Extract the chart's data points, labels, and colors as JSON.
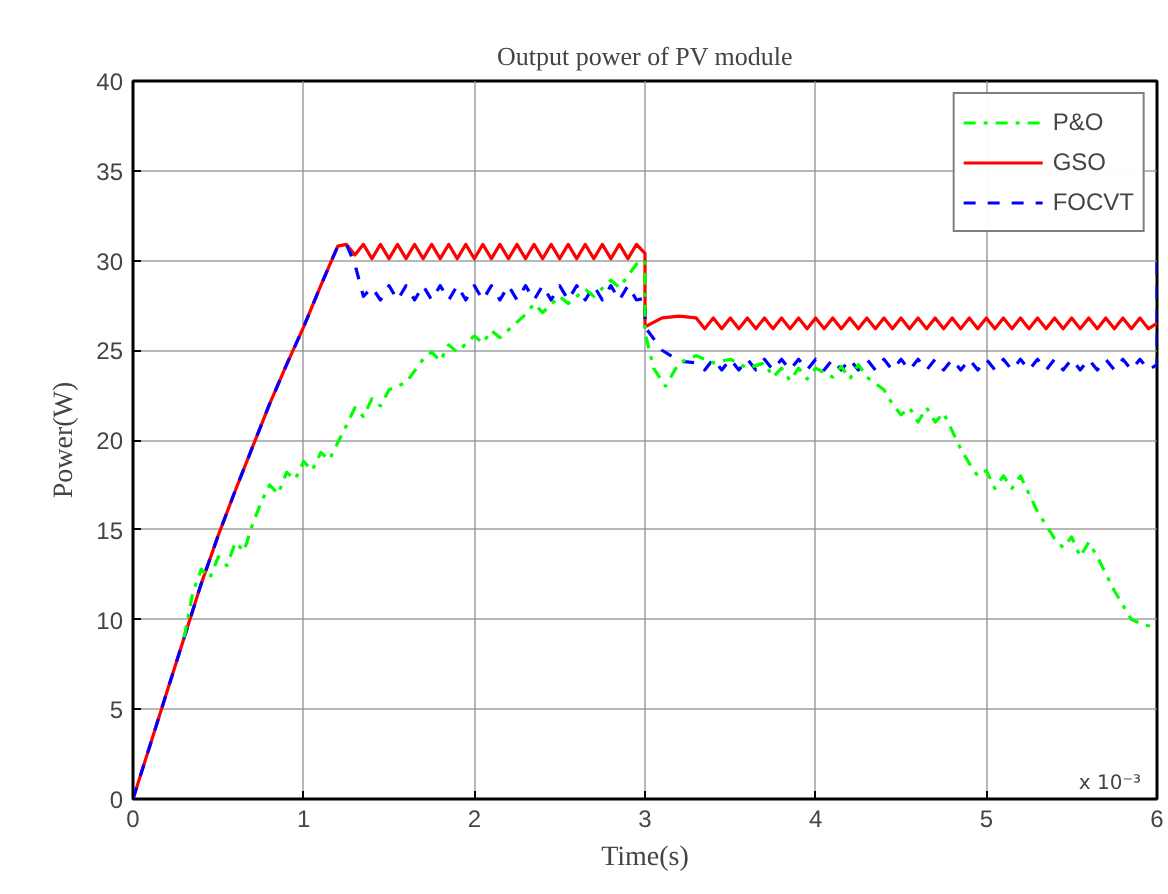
{
  "chart_data": {
    "type": "line",
    "title": "Output power of PV module",
    "xlabel": "Time(s)",
    "ylabel": "Power(W)",
    "xlim": [
      0,
      6
    ],
    "ylim": [
      0,
      40
    ],
    "xticks": [
      0,
      1,
      2,
      3,
      4,
      5,
      6
    ],
    "yticks": [
      0,
      5,
      10,
      15,
      20,
      25,
      30,
      35,
      40
    ],
    "grid": true,
    "legend": "top right",
    "marker": "none",
    "annotations": [
      "x 10⁻³"
    ],
    "series": [
      {
        "name": "P&O",
        "color": "#00ff00",
        "line_style": "dashdot",
        "x": [
          0.3,
          0.35,
          0.4,
          0.45,
          0.5,
          0.55,
          0.6,
          0.65,
          0.7,
          0.75,
          0.8,
          0.85,
          0.9,
          0.95,
          1.0,
          1.05,
          1.1,
          1.15,
          1.25,
          1.3,
          1.35,
          1.4,
          1.45,
          1.5,
          1.6,
          1.7,
          1.75,
          1.8,
          1.85,
          1.9,
          2.0,
          2.05,
          2.1,
          2.15,
          2.3,
          2.35,
          2.4,
          2.5,
          2.55,
          2.65,
          2.7,
          2.8,
          2.85,
          2.95,
          3.0,
          3.0,
          3.05,
          3.12,
          3.2,
          3.3,
          3.4,
          3.5,
          3.6,
          3.7,
          3.75,
          3.8,
          3.85,
          3.9,
          3.95,
          4.0,
          4.1,
          4.15,
          4.2,
          4.25,
          4.3,
          4.4,
          4.45,
          4.5,
          4.55,
          4.6,
          4.65,
          4.7,
          4.75,
          4.85,
          4.9,
          4.95,
          5.0,
          5.05,
          5.1,
          5.15,
          5.2,
          5.3,
          5.4,
          5.45,
          5.5,
          5.55,
          5.6,
          5.65,
          5.75,
          5.85,
          5.9,
          6.0
        ],
        "values": [
          9,
          11.5,
          12.8,
          12.3,
          13.5,
          13.0,
          14.3,
          13.8,
          15.3,
          16.5,
          17.5,
          17.0,
          18.2,
          17.8,
          18.8,
          18.3,
          19.3,
          18.9,
          20.8,
          21.8,
          21.3,
          22.3,
          21.9,
          22.8,
          23.2,
          24.5,
          24.9,
          24.4,
          25.3,
          24.9,
          25.8,
          25.4,
          26.1,
          25.7,
          27.0,
          27.6,
          27.1,
          28.0,
          27.6,
          28.4,
          28.0,
          28.9,
          28.5,
          29.8,
          30.0,
          26.0,
          24.0,
          23.0,
          24.3,
          24.7,
          24.3,
          24.5,
          24.0,
          24.3,
          23.5,
          24.0,
          23.3,
          24.0,
          23.4,
          24.0,
          23.5,
          24.1,
          23.4,
          24.2,
          23.5,
          22.8,
          22.0,
          21.4,
          21.8,
          21.0,
          21.8,
          21.0,
          21.5,
          19.5,
          18.7,
          18.0,
          18.3,
          17.3,
          18.0,
          17.3,
          18.0,
          16.0,
          14.5,
          14.0,
          14.6,
          13.5,
          14.3,
          13.5,
          11.6,
          10.0,
          9.8,
          9.5
        ]
      },
      {
        "name": "GSO",
        "color": "#ff0000",
        "line_style": "solid",
        "x": [
          0,
          0.1,
          0.2,
          0.3,
          0.4,
          0.5,
          0.6,
          0.7,
          0.8,
          0.9,
          1.0,
          1.1,
          1.2,
          1.25,
          1.3,
          1.35,
          1.4,
          1.45,
          1.5,
          1.55,
          1.6,
          1.65,
          1.7,
          1.75,
          1.8,
          1.85,
          1.9,
          1.95,
          2.0,
          2.05,
          2.1,
          2.15,
          2.2,
          2.25,
          2.3,
          2.35,
          2.4,
          2.45,
          2.5,
          2.55,
          2.6,
          2.65,
          2.7,
          2.75,
          2.8,
          2.85,
          2.9,
          2.95,
          3.0,
          3.0,
          3.1,
          3.2,
          3.3,
          3.35,
          3.4,
          3.45,
          3.5,
          3.55,
          3.6,
          3.65,
          3.7,
          3.75,
          3.8,
          3.85,
          3.9,
          3.95,
          4.0,
          4.05,
          4.1,
          4.15,
          4.2,
          4.25,
          4.3,
          4.35,
          4.4,
          4.45,
          4.5,
          4.55,
          4.6,
          4.65,
          4.7,
          4.75,
          4.8,
          4.85,
          4.9,
          4.95,
          5.0,
          5.05,
          5.1,
          5.15,
          5.2,
          5.25,
          5.3,
          5.35,
          5.4,
          5.45,
          5.5,
          5.55,
          5.6,
          5.65,
          5.7,
          5.75,
          5.8,
          5.85,
          5.9,
          5.95,
          6.0
        ],
        "values": [
          0,
          3,
          6,
          9,
          12,
          14.7,
          17.2,
          19.6,
          22,
          24.2,
          26.3,
          28.6,
          30.8,
          30.9,
          30.3,
          30.9,
          30.1,
          30.9,
          30.1,
          30.9,
          30.1,
          30.9,
          30.1,
          30.9,
          30.1,
          30.9,
          30.1,
          30.9,
          30.1,
          30.9,
          30.1,
          30.9,
          30.1,
          30.9,
          30.1,
          30.9,
          30.1,
          30.9,
          30.1,
          30.9,
          30.1,
          30.9,
          30.1,
          30.9,
          30.1,
          30.9,
          30.1,
          30.9,
          30.4,
          26.3,
          26.8,
          26.9,
          26.8,
          26.2,
          26.8,
          26.2,
          26.8,
          26.2,
          26.8,
          26.2,
          26.8,
          26.2,
          26.8,
          26.2,
          26.8,
          26.2,
          26.8,
          26.2,
          26.8,
          26.2,
          26.8,
          26.2,
          26.8,
          26.2,
          26.8,
          26.2,
          26.8,
          26.2,
          26.8,
          26.2,
          26.8,
          26.2,
          26.8,
          26.2,
          26.8,
          26.2,
          26.8,
          26.2,
          26.8,
          26.2,
          26.8,
          26.2,
          26.8,
          26.2,
          26.8,
          26.2,
          26.8,
          26.2,
          26.8,
          26.2,
          26.8,
          26.2,
          26.8,
          26.2,
          26.8,
          26.2,
          26.5
        ]
      },
      {
        "name": "FOCVT",
        "color": "#0000ff",
        "line_style": "dashed",
        "x": [
          0,
          0.1,
          0.2,
          0.3,
          0.4,
          0.5,
          0.6,
          0.7,
          0.8,
          0.9,
          1.0,
          1.1,
          1.2,
          1.25,
          1.3,
          1.35,
          1.4,
          1.45,
          1.5,
          1.55,
          1.6,
          1.65,
          1.7,
          1.75,
          1.8,
          1.85,
          1.9,
          1.95,
          2.0,
          2.05,
          2.1,
          2.15,
          2.2,
          2.25,
          2.3,
          2.35,
          2.4,
          2.45,
          2.5,
          2.55,
          2.6,
          2.65,
          2.7,
          2.75,
          2.8,
          2.85,
          2.9,
          2.95,
          3.0,
          3.0,
          3.1,
          3.2,
          3.3,
          3.35,
          3.4,
          3.45,
          3.5,
          3.55,
          3.6,
          3.65,
          3.7,
          3.75,
          3.8,
          3.85,
          3.9,
          3.95,
          4.0,
          4.05,
          4.1,
          4.15,
          4.2,
          4.25,
          4.3,
          4.35,
          4.4,
          4.45,
          4.5,
          4.55,
          4.6,
          4.65,
          4.7,
          4.75,
          4.8,
          4.85,
          4.9,
          4.95,
          5.0,
          5.05,
          5.1,
          5.15,
          5.2,
          5.25,
          5.3,
          5.35,
          5.4,
          5.45,
          5.5,
          5.55,
          5.6,
          5.65,
          5.7,
          5.75,
          5.8,
          5.85,
          5.9,
          5.95,
          6.0,
          6.0
        ],
        "values": [
          0,
          3,
          6,
          9,
          12,
          14.7,
          17.2,
          19.6,
          22,
          24.2,
          26.3,
          28.6,
          30.8,
          30.9,
          29.8,
          28.0,
          28.5,
          27.8,
          28.6,
          27.8,
          28.6,
          27.8,
          28.6,
          27.8,
          28.6,
          27.8,
          28.6,
          27.8,
          28.6,
          27.8,
          28.6,
          27.8,
          28.6,
          27.8,
          28.6,
          27.8,
          28.6,
          27.8,
          28.6,
          27.8,
          28.6,
          27.8,
          28.6,
          27.8,
          28.6,
          27.8,
          28.6,
          27.8,
          27.9,
          26.3,
          25.0,
          24.4,
          24.3,
          23.9,
          24.5,
          23.9,
          24.5,
          23.9,
          24.5,
          23.9,
          24.5,
          23.9,
          24.5,
          23.9,
          24.5,
          23.9,
          24.5,
          23.9,
          24.5,
          23.9,
          24.5,
          23.9,
          24.5,
          23.9,
          24.5,
          23.9,
          24.5,
          23.9,
          24.5,
          23.9,
          24.5,
          23.9,
          24.5,
          23.9,
          24.5,
          23.9,
          24.5,
          23.9,
          24.5,
          23.9,
          24.5,
          23.9,
          24.5,
          23.9,
          24.5,
          23.9,
          24.5,
          23.9,
          24.5,
          23.9,
          24.5,
          23.9,
          24.5,
          23.9,
          24.5,
          23.9,
          24.2,
          30.0
        ]
      }
    ]
  }
}
